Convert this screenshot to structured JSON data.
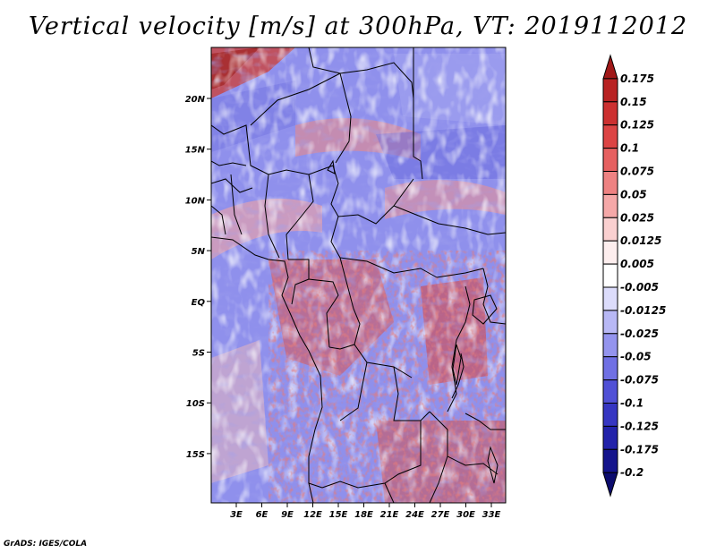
{
  "title": "Vertical velocity [m/s] at 300hPa, VT: 2019112012",
  "credit": "GrADS: IGES/COLA",
  "map": {
    "lat_labels": [
      "20N",
      "15N",
      "10N",
      "5N",
      "EQ",
      "5S",
      "10S",
      "15S"
    ],
    "lon_labels": [
      "3E",
      "6E",
      "9E",
      "12E",
      "15E",
      "18E",
      "21E",
      "24E",
      "27E",
      "30E",
      "33E"
    ]
  },
  "colorbar": {
    "levels": [
      "0.175",
      "0.15",
      "0.125",
      "0.1",
      "0.075",
      "0.05",
      "0.025",
      "0.0125",
      "0.005",
      "-0.005",
      "-0.0125",
      "-0.025",
      "-0.05",
      "-0.075",
      "-0.1",
      "-0.125",
      "-0.175",
      "-0.2"
    ],
    "colors": [
      "#a01818",
      "#b82222",
      "#cc3030",
      "#dc4444",
      "#e66060",
      "#ee8282",
      "#f5a8a8",
      "#fad0d0",
      "#fdeeee",
      "#ffffff",
      "#dcdcfb",
      "#b8b8f5",
      "#9494ee",
      "#7070e4",
      "#5050d6",
      "#3636c2",
      "#2222aa",
      "#14148c",
      "#0c0c6e"
    ]
  }
}
